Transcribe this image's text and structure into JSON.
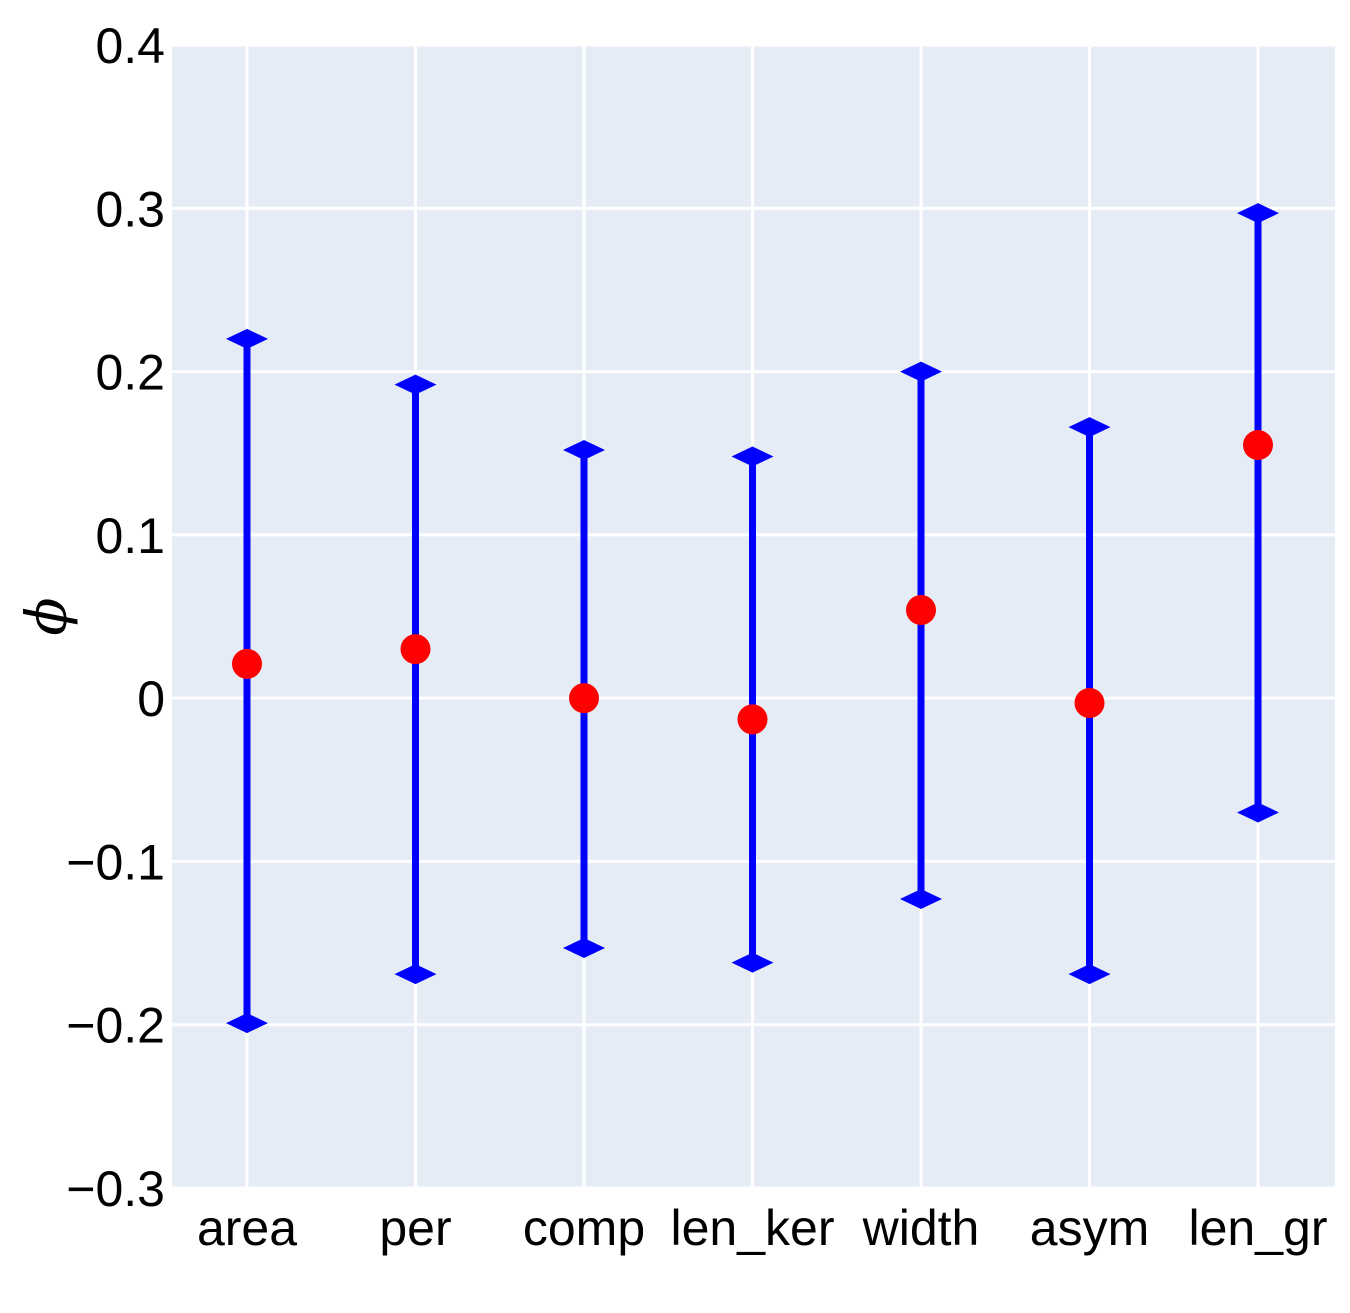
{
  "chart_data": {
    "type": "scatter",
    "subtype": "errorbar",
    "title": "",
    "xlabel": "",
    "ylabel": "ϕ",
    "categories": [
      "area",
      "per",
      "comp",
      "len_ker",
      "width",
      "asym",
      "len_gr"
    ],
    "values": [
      0.021,
      0.03,
      0.0,
      -0.013,
      0.054,
      -0.003,
      0.155
    ],
    "upper": [
      0.22,
      0.192,
      0.152,
      0.148,
      0.2,
      0.166,
      0.297
    ],
    "lower": [
      -0.199,
      -0.169,
      -0.153,
      -0.162,
      -0.123,
      -0.169,
      -0.07
    ],
    "ylim": [
      -0.3,
      0.4
    ],
    "yticks": [
      0.4,
      0.3,
      0.2,
      0.1,
      0,
      -0.1,
      -0.2,
      -0.3
    ],
    "ytick_labels": [
      "0.4",
      "0.3",
      "0.2",
      "0.1",
      "0",
      "−0.1",
      "−0.2",
      "−0.3"
    ],
    "grid": true,
    "legend": "none",
    "colors": {
      "background": "#e5ecf6",
      "grid": "#ffffff",
      "errorbar": "#0000ff",
      "point": "#ff0000"
    }
  }
}
